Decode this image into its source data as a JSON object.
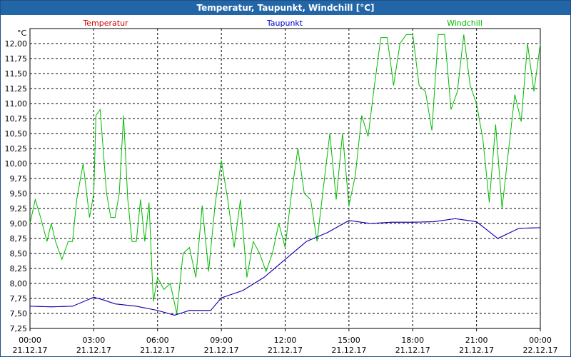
{
  "title": "Temperatur, Taupunkt, Windchill [°C]",
  "chart_data": {
    "type": "line",
    "unit": "°C",
    "ylim": [
      7.25,
      12.25
    ],
    "y_ticks": [
      "12,00",
      "11,75",
      "11,50",
      "11,25",
      "11,00",
      "10,75",
      "10,50",
      "10,25",
      "10,00",
      "9,75",
      "9,50",
      "9,25",
      "9,00",
      "8,75",
      "8,50",
      "8,25",
      "8,00",
      "7,75",
      "7,50",
      "7,25"
    ],
    "x_ticks": [
      {
        "time": "00:00",
        "date": "21.12.17"
      },
      {
        "time": "03:00",
        "date": "21.12.17"
      },
      {
        "time": "06:00",
        "date": "21.12.17"
      },
      {
        "time": "09:00",
        "date": "21.12.17"
      },
      {
        "time": "12:00",
        "date": "21.12.17"
      },
      {
        "time": "15:00",
        "date": "21.12.17"
      },
      {
        "time": "18:00",
        "date": "21.12.17"
      },
      {
        "time": "21:00",
        "date": "21.12.17"
      },
      {
        "time": "00:00",
        "date": "22.12.17"
      }
    ],
    "grid": true,
    "series": [
      {
        "name": "Temperatur",
        "color": "#cc0000",
        "x_hours": [
          0,
          1,
          2,
          3,
          3.5,
          4,
          5,
          6,
          6.8,
          7.5,
          8.5,
          9,
          10,
          11,
          12,
          13,
          14,
          15,
          16,
          17,
          18,
          19,
          20,
          21,
          22,
          23,
          24
        ],
        "values": [
          7.62,
          7.61,
          7.62,
          7.77,
          7.72,
          7.66,
          7.62,
          7.55,
          7.47,
          7.55,
          7.55,
          7.76,
          7.88,
          8.1,
          8.4,
          8.7,
          8.85,
          9.05,
          9.0,
          9.02,
          9.02,
          9.03,
          9.08,
          9.03,
          8.75,
          8.92,
          8.93
        ]
      },
      {
        "name": "Taupunkt",
        "color": "#0000cc",
        "x_hours": [
          0,
          1,
          2,
          3,
          3.5,
          4,
          5,
          6,
          6.8,
          7.5,
          8.5,
          9,
          10,
          11,
          12,
          13,
          14,
          15,
          16,
          17,
          18,
          19,
          20,
          21,
          22,
          23,
          24
        ],
        "values": [
          7.62,
          7.61,
          7.62,
          7.77,
          7.72,
          7.66,
          7.62,
          7.55,
          7.47,
          7.55,
          7.55,
          7.76,
          7.88,
          8.1,
          8.4,
          8.7,
          8.85,
          9.05,
          9.0,
          9.02,
          9.02,
          9.03,
          9.08,
          9.03,
          8.75,
          8.92,
          8.93
        ]
      },
      {
        "name": "Windchill",
        "color": "#00bb00",
        "x_hours": [
          0,
          0.25,
          0.5,
          0.8,
          1.0,
          1.2,
          1.5,
          1.8,
          2.0,
          2.2,
          2.5,
          2.8,
          3.0,
          3.1,
          3.3,
          3.6,
          3.8,
          4.0,
          4.2,
          4.4,
          4.6,
          4.8,
          5.0,
          5.2,
          5.4,
          5.6,
          5.8,
          6.0,
          6.3,
          6.6,
          6.9,
          7.2,
          7.5,
          7.8,
          8.1,
          8.4,
          8.7,
          9.0,
          9.3,
          9.6,
          9.9,
          10.2,
          10.5,
          10.8,
          11.1,
          11.4,
          11.7,
          12.0,
          12.3,
          12.6,
          12.9,
          13.2,
          13.5,
          13.8,
          14.1,
          14.4,
          14.7,
          15.0,
          15.3,
          15.6,
          15.9,
          16.2,
          16.5,
          16.8,
          17.1,
          17.4,
          17.7,
          18.0,
          18.3,
          18.6,
          18.9,
          19.2,
          19.5,
          19.8,
          20.1,
          20.4,
          20.7,
          21.0,
          21.3,
          21.6,
          21.9,
          22.2,
          22.5,
          22.8,
          23.1,
          23.4,
          23.7,
          24.0
        ],
        "values": [
          9.0,
          9.4,
          9.1,
          8.7,
          9.0,
          8.7,
          8.4,
          8.7,
          8.7,
          9.4,
          10.0,
          9.1,
          9.5,
          10.8,
          10.9,
          9.5,
          9.1,
          9.1,
          9.5,
          10.8,
          9.4,
          8.7,
          8.7,
          9.4,
          8.7,
          9.35,
          7.7,
          8.1,
          7.9,
          8.0,
          7.5,
          8.5,
          8.6,
          8.1,
          9.3,
          8.2,
          9.3,
          10.05,
          9.4,
          8.6,
          9.4,
          8.1,
          8.7,
          8.5,
          8.2,
          8.5,
          9.0,
          8.6,
          9.5,
          10.25,
          9.5,
          9.4,
          8.7,
          9.6,
          10.5,
          9.4,
          10.5,
          9.3,
          9.8,
          10.8,
          10.45,
          11.3,
          12.1,
          12.1,
          11.3,
          12.0,
          12.15,
          12.15,
          11.3,
          11.2,
          10.55,
          12.15,
          12.15,
          10.9,
          11.2,
          12.15,
          11.3,
          11.0,
          10.4,
          9.35,
          10.65,
          9.25,
          10.2,
          11.15,
          10.7,
          12.0,
          11.2,
          12.0
        ]
      }
    ]
  }
}
